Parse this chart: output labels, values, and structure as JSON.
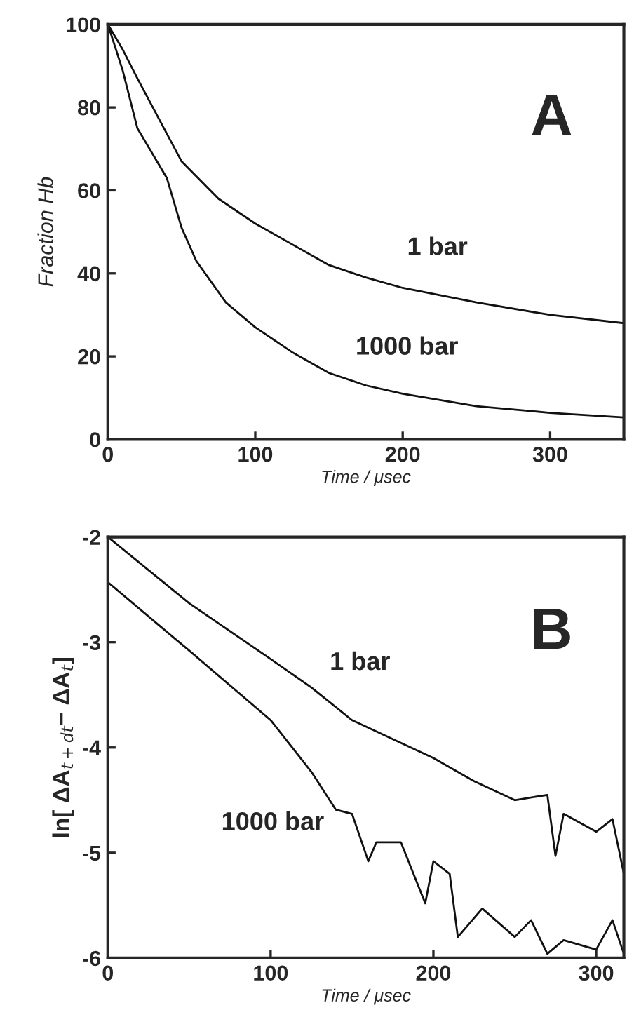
{
  "chart_data": [
    {
      "type": "line",
      "annotations": [
        "A"
      ],
      "xlabel": "Time / μsec",
      "ylabel": "Fraction Hb",
      "xlim": [
        0,
        350
      ],
      "ylim": [
        0,
        100
      ],
      "xticks": [
        0,
        100,
        200,
        300
      ],
      "yticks": [
        0,
        20,
        40,
        60,
        80,
        100
      ],
      "grid": false,
      "legend": false,
      "line_style": "solid",
      "marker": "none",
      "series": [
        {
          "name": "1 bar",
          "color": "#111111",
          "x": [
            0,
            10,
            20,
            50,
            75,
            100,
            125,
            150,
            175,
            200,
            250,
            300,
            350
          ],
          "values": [
            100,
            94,
            87,
            67,
            58,
            52,
            47,
            42,
            39,
            36.5,
            33,
            30,
            28
          ]
        },
        {
          "name": "1000 bar",
          "color": "#111111",
          "x": [
            0,
            10,
            20,
            40,
            50,
            60,
            80,
            100,
            125,
            150,
            175,
            200,
            250,
            300,
            350
          ],
          "values": [
            100,
            89,
            75,
            63,
            51,
            43,
            33,
            27,
            21,
            16,
            13,
            11,
            8,
            6.4,
            5.3
          ]
        }
      ]
    },
    {
      "type": "line",
      "annotations": [
        "B"
      ],
      "xlabel": "Time / μsec",
      "ylabel": "ln[ ΔA$_{t+dt}$− ΔA$_{t}$]",
      "xlim": [
        0,
        317
      ],
      "ylim": [
        -6,
        -2
      ],
      "xticks": [
        0,
        100,
        200,
        300
      ],
      "yticks": [
        -6,
        -5,
        -4,
        -3,
        -2
      ],
      "grid": false,
      "legend": false,
      "line_style": "solid",
      "marker": "none",
      "series": [
        {
          "name": "1 bar",
          "color": "#111111",
          "x": [
            0,
            50,
            100,
            125,
            150,
            175,
            200,
            225,
            250,
            270,
            275,
            280,
            300,
            310,
            317
          ],
          "values": [
            -2.0,
            -2.63,
            -3.16,
            -3.43,
            -3.74,
            -3.92,
            -4.1,
            -4.32,
            -4.5,
            -4.45,
            -5.03,
            -4.63,
            -4.8,
            -4.68,
            -5.2
          ]
        },
        {
          "name": "1000 bar",
          "color": "#111111",
          "x": [
            0,
            50,
            100,
            125,
            140,
            150,
            160,
            165,
            180,
            195,
            200,
            210,
            215,
            230,
            250,
            260,
            270,
            280,
            300,
            310,
            317
          ],
          "values": [
            -2.43,
            -3.08,
            -3.74,
            -4.23,
            -4.59,
            -4.63,
            -5.08,
            -4.9,
            -4.9,
            -5.48,
            -5.08,
            -5.2,
            -5.8,
            -5.53,
            -5.8,
            -5.64,
            -5.96,
            -5.83,
            -5.92,
            -5.64,
            -5.96
          ]
        }
      ]
    }
  ]
}
